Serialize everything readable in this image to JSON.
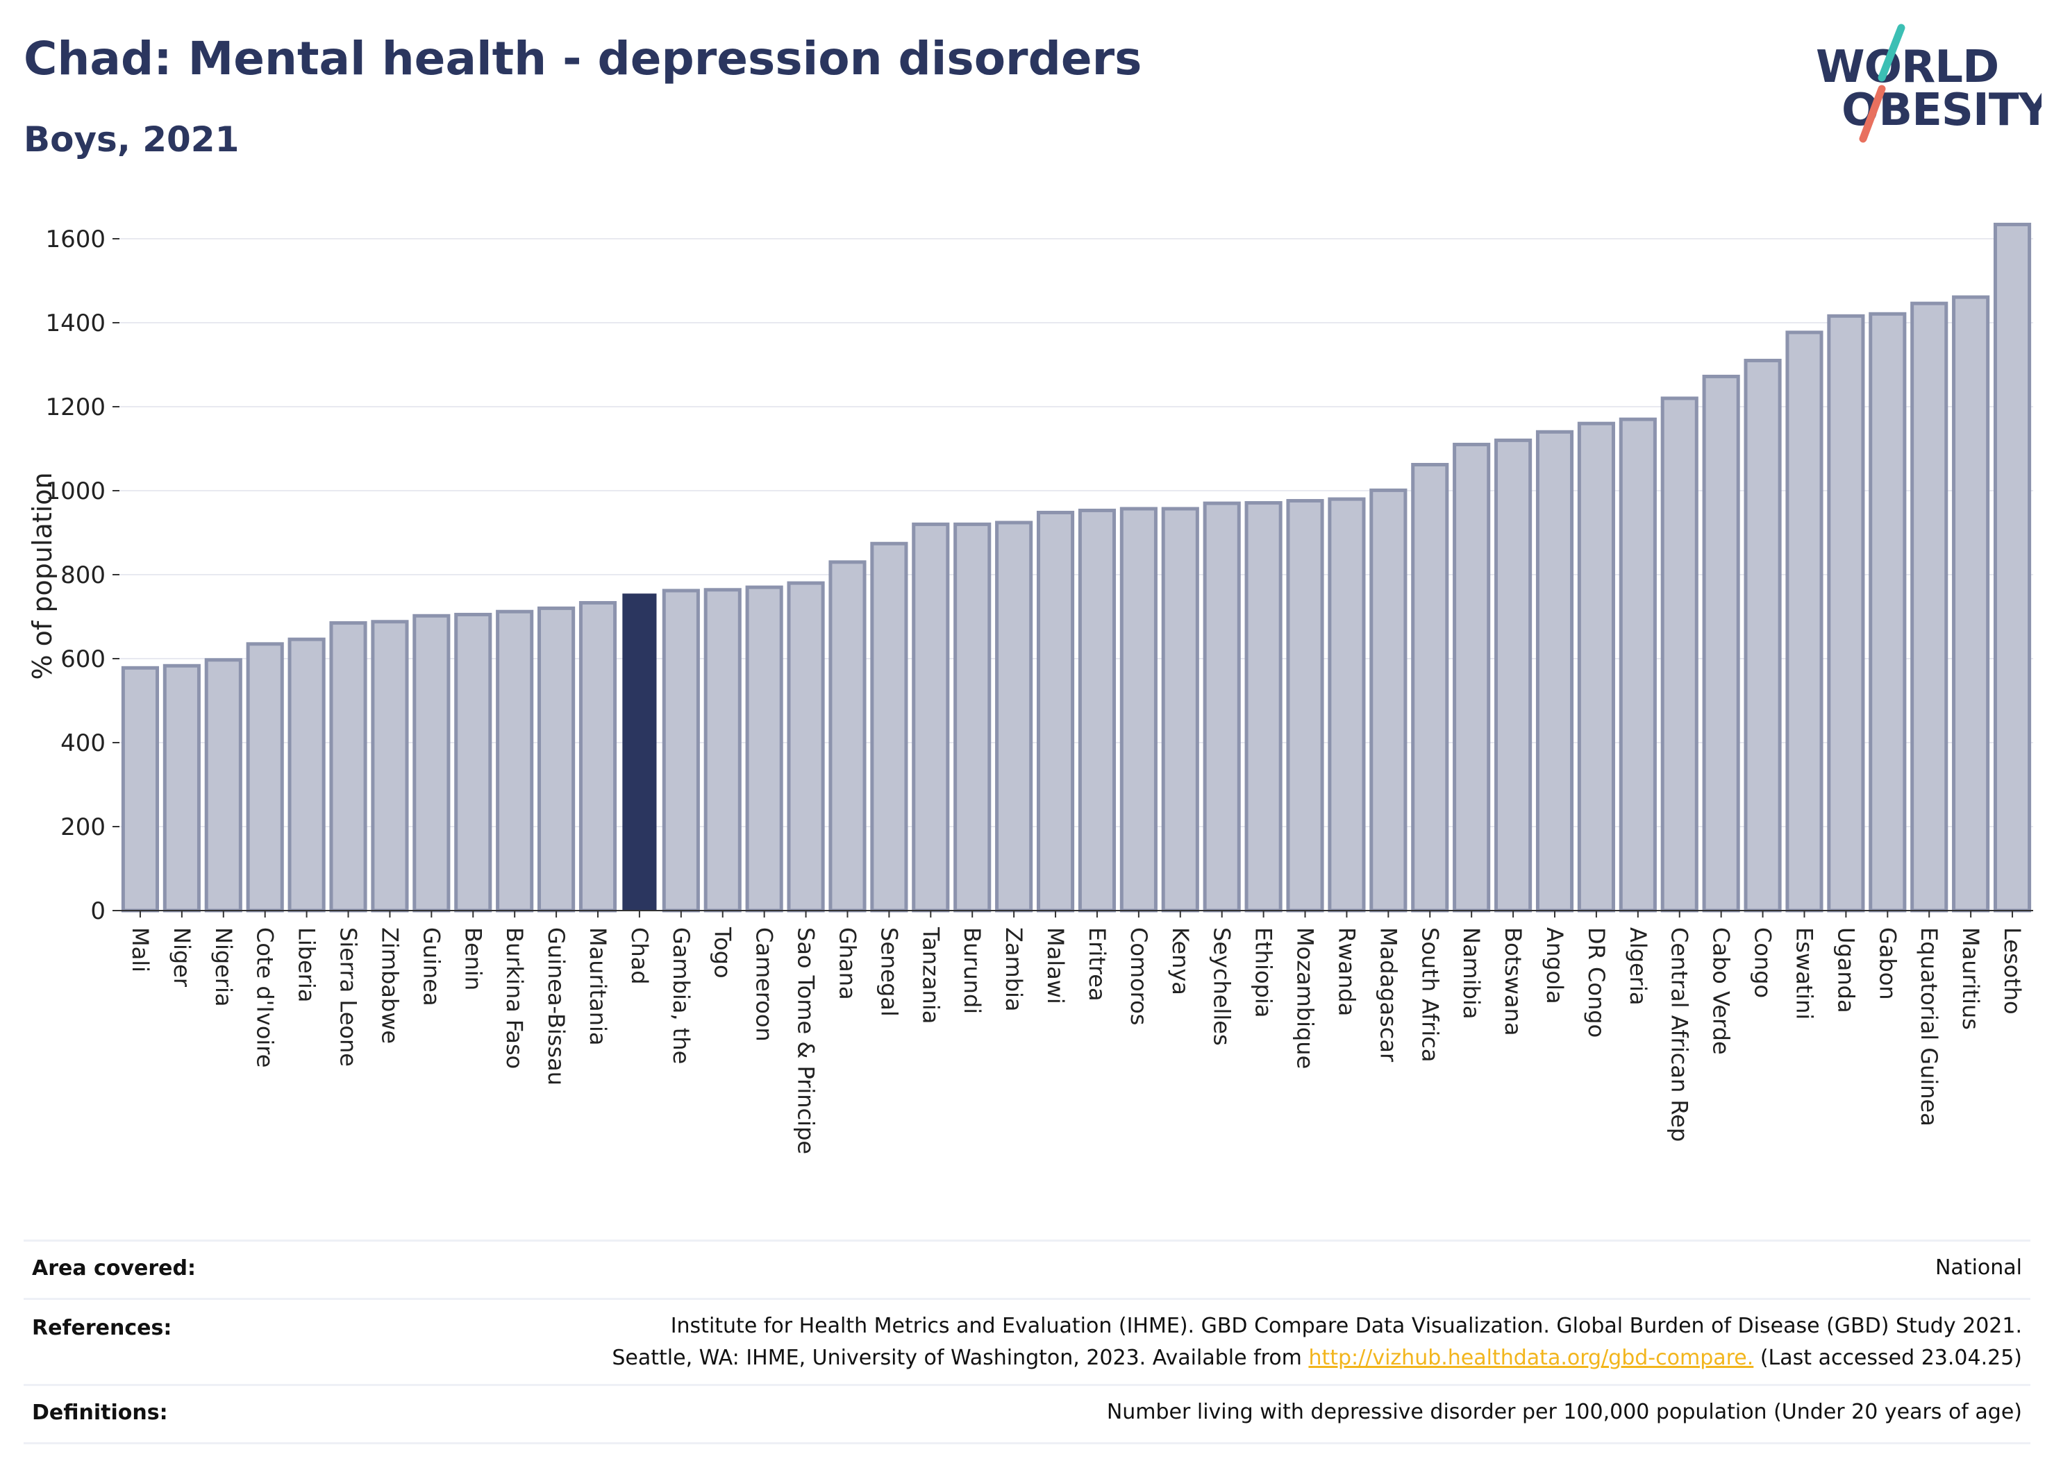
{
  "header": {
    "title": "Chad: Mental health - depression disorders",
    "subtitle": "Boys, 2021"
  },
  "logo": {
    "line1": "WORLD",
    "line2": "OBESITY",
    "icon": "world-obesity-logo"
  },
  "colors": {
    "bar_default": "#bfc3d2",
    "bar_default_stroke": "#8c93ad",
    "bar_highlight": "#2b365f",
    "text_dark": "#2b365f",
    "grid": "#e8e9f0",
    "logo_teal": "#3cbfb4",
    "logo_coral": "#e8705e",
    "link": "#f2b51c"
  },
  "chart_data": {
    "type": "bar",
    "title": "Chad: Mental health - depression disorders",
    "subtitle": "Boys, 2021",
    "xlabel": "",
    "ylabel": "% of population",
    "ylim": [
      0,
      1650
    ],
    "yticks": [
      0,
      200,
      400,
      600,
      800,
      1000,
      1200,
      1400,
      1600
    ],
    "grid": true,
    "highlight": "Chad",
    "categories": [
      "Mali",
      "Niger",
      "Nigeria",
      "Cote d'Ivoire",
      "Liberia",
      "Sierra Leone",
      "Zimbabwe",
      "Guinea",
      "Benin",
      "Burkina Faso",
      "Guinea-Bissau",
      "Mauritania",
      "Chad",
      "Gambia, the",
      "Togo",
      "Cameroon",
      "Sao Tome & Principe",
      "Ghana",
      "Senegal",
      "Tanzania",
      "Burundi",
      "Zambia",
      "Malawi",
      "Eritrea",
      "Comoros",
      "Kenya",
      "Seychelles",
      "Ethiopia",
      "Mozambique",
      "Rwanda",
      "Madagascar",
      "South Africa",
      "Namibia",
      "Botswana",
      "Angola",
      "DR Congo",
      "Algeria",
      "Central African Rep",
      "Cabo Verde",
      "Congo",
      "Eswatini",
      "Uganda",
      "Gabon",
      "Equatorial Guinea",
      "Mauritius",
      "Lesotho"
    ],
    "values": [
      578,
      583,
      597,
      635,
      646,
      685,
      688,
      702,
      705,
      712,
      720,
      733,
      755,
      762,
      764,
      770,
      780,
      830,
      874,
      920,
      920,
      924,
      948,
      953,
      957,
      957,
      970,
      971,
      976,
      980,
      1001,
      1062,
      1110,
      1120,
      1140,
      1160,
      1170,
      1220,
      1272,
      1310,
      1377,
      1416,
      1421,
      1446,
      1461,
      1634
    ]
  },
  "footer": {
    "area_label": "Area covered:",
    "area_value": "National",
    "references_label": "References:",
    "references_line1": "Institute for Health Metrics and Evaluation (IHME). GBD Compare Data Visualization. Global Burden of Disease (GBD) Study 2021.",
    "references_line2_pre": "Seattle, WA: IHME, University of Washington, 2023. Available from ",
    "references_link": "http://vizhub.healthdata.org/gbd-compare.",
    "references_line2_post": " (Last accessed 23.04.25)",
    "definitions_label": "Definitions:",
    "definitions_value": "Number living with depressive disorder per 100,000 population (Under 20 years of age)"
  }
}
